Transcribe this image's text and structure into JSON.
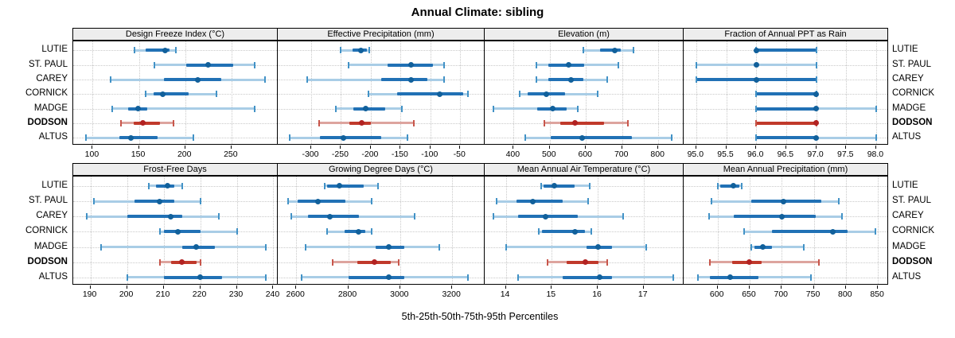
{
  "title": "Annual Climate: sibling",
  "caption": "5th-25th-50th-75th-95th Percentiles",
  "percentile_labels": [
    "5th",
    "25th",
    "50th",
    "75th",
    "95th"
  ],
  "stations": [
    "LUTIE",
    "ST. PAUL",
    "CAREY",
    "CORNICK",
    "MADGE",
    "DODSON",
    "ALTUS"
  ],
  "highlight_station": "DODSON",
  "colors": {
    "series_light": "#a9cde6",
    "series_strong": "#2171b5",
    "series_cap": "#4292c6",
    "series_dot": "#11609b",
    "highlight_light": "#dda49e",
    "highlight_strong": "#c0392b",
    "highlight_cap": "#c8564b",
    "highlight_dot": "#b22222",
    "strip_bg": "#ededed",
    "grid": "#c9c9c9",
    "border": "#000000"
  },
  "chart_data": [
    {
      "type": "percentile-range",
      "row": 1,
      "col": 1,
      "title": "Design Freeze Index (°C)",
      "domain": [
        79,
        300
      ],
      "ticks": [
        100,
        150,
        200,
        250
      ],
      "tick_labels": [
        "100",
        "150",
        "200",
        "250"
      ],
      "series": [
        {
          "name": "LUTIE",
          "q": [
            145,
            157,
            178,
            183,
            190
          ]
        },
        {
          "name": "ST. PAUL",
          "q": [
            167,
            201,
            225,
            252,
            275
          ]
        },
        {
          "name": "CAREY",
          "q": [
            119,
            177,
            214,
            239,
            286
          ]
        },
        {
          "name": "CORNICK",
          "q": [
            157,
            166,
            176,
            204,
            234
          ]
        },
        {
          "name": "MADGE",
          "q": [
            121,
            138,
            149,
            159,
            275
          ]
        },
        {
          "name": "DODSON",
          "q": [
            131,
            144,
            154,
            173,
            187
          ]
        },
        {
          "name": "ALTUS",
          "q": [
            93,
            129,
            141,
            170,
            209
          ]
        }
      ]
    },
    {
      "type": "percentile-range",
      "row": 1,
      "col": 2,
      "title": "Effective Precipitation (mm)",
      "domain": [
        -356,
        -9
      ],
      "ticks": [
        -300,
        -250,
        -200,
        -150,
        -100,
        -50
      ],
      "tick_labels": [
        "-300",
        "-250",
        "-200",
        "-150",
        "-100",
        "-50"
      ],
      "series": [
        {
          "name": "LUTIE",
          "q": [
            -250,
            -230,
            -217,
            -206,
            -202
          ]
        },
        {
          "name": "ST. PAUL",
          "q": [
            -237,
            -172,
            -132,
            -96,
            -77
          ]
        },
        {
          "name": "CAREY",
          "q": [
            -306,
            -183,
            -132,
            -105,
            -77
          ]
        },
        {
          "name": "CORNICK",
          "q": [
            -204,
            -156,
            -85,
            -45,
            -37
          ]
        },
        {
          "name": "MADGE",
          "q": [
            -259,
            -229,
            -208,
            -176,
            -148
          ]
        },
        {
          "name": "DODSON",
          "q": [
            -286,
            -236,
            -215,
            -200,
            -128
          ]
        },
        {
          "name": "ALTUS",
          "q": [
            -336,
            -285,
            -246,
            -183,
            -138
          ]
        }
      ]
    },
    {
      "type": "percentile-range",
      "row": 1,
      "col": 3,
      "title": "Elevation (m)",
      "domain": [
        320,
        870
      ],
      "ticks": [
        400,
        500,
        600,
        700,
        800
      ],
      "tick_labels": [
        "400",
        "500",
        "600",
        "700",
        "800"
      ],
      "series": [
        {
          "name": "LUTIE",
          "q": [
            593,
            638,
            680,
            697,
            732
          ]
        },
        {
          "name": "ST. PAUL",
          "q": [
            462,
            495,
            552,
            594,
            690
          ]
        },
        {
          "name": "CAREY",
          "q": [
            462,
            496,
            558,
            592,
            659
          ]
        },
        {
          "name": "CORNICK",
          "q": [
            417,
            439,
            490,
            543,
            632
          ]
        },
        {
          "name": "MADGE",
          "q": [
            345,
            466,
            508,
            547,
            578
          ]
        },
        {
          "name": "DODSON",
          "q": [
            484,
            528,
            569,
            649,
            715
          ]
        },
        {
          "name": "ALTUS",
          "q": [
            433,
            503,
            590,
            726,
            838
          ]
        }
      ]
    },
    {
      "type": "percentile-range",
      "row": 1,
      "col": 4,
      "title": "Fraction of Annual PPT as Rain",
      "domain": [
        94.79,
        98.2
      ],
      "ticks": [
        95.0,
        95.5,
        96.0,
        96.5,
        97.0,
        97.5,
        98.0
      ],
      "tick_labels": [
        "95.0",
        "95.5",
        "96.0",
        "96.5",
        "97.0",
        "97.5",
        "98.0"
      ],
      "series": [
        {
          "name": "LUTIE",
          "q": [
            96.0,
            96.0,
            96.0,
            97.0,
            97.0
          ]
        },
        {
          "name": "ST. PAUL",
          "q": [
            95.0,
            96.0,
            96.0,
            96.0,
            97.0
          ]
        },
        {
          "name": "CAREY",
          "q": [
            95.0,
            95.0,
            96.0,
            97.0,
            97.0
          ]
        },
        {
          "name": "CORNICK",
          "q": [
            96.0,
            96.0,
            97.0,
            97.0,
            97.0
          ]
        },
        {
          "name": "MADGE",
          "q": [
            96.0,
            96.0,
            97.0,
            97.0,
            98.0
          ]
        },
        {
          "name": "DODSON",
          "q": [
            96.0,
            96.0,
            97.0,
            97.0,
            97.0
          ]
        },
        {
          "name": "ALTUS",
          "q": [
            96.0,
            96.0,
            97.0,
            97.0,
            98.0
          ]
        }
      ]
    },
    {
      "type": "percentile-range",
      "row": 2,
      "col": 1,
      "title": "Frost-Free Days",
      "domain": [
        185.3,
        241.2
      ],
      "ticks": [
        190,
        200,
        210,
        220,
        230,
        240
      ],
      "tick_labels": [
        "190",
        "200",
        "210",
        "220",
        "230",
        "240"
      ],
      "series": [
        {
          "name": "LUTIE",
          "q": [
            206,
            208,
            211,
            213,
            215
          ]
        },
        {
          "name": "ST. PAUL",
          "q": [
            191,
            202,
            209,
            213,
            220
          ]
        },
        {
          "name": "CAREY",
          "q": [
            189,
            200,
            212,
            215,
            225
          ]
        },
        {
          "name": "CORNICK",
          "q": [
            209,
            210,
            214,
            220,
            230
          ]
        },
        {
          "name": "MADGE",
          "q": [
            193,
            215,
            219,
            224,
            238
          ]
        },
        {
          "name": "DODSON",
          "q": [
            209,
            212,
            215,
            219,
            220
          ]
        },
        {
          "name": "ALTUS",
          "q": [
            200,
            210,
            220,
            226,
            238
          ]
        }
      ]
    },
    {
      "type": "percentile-range",
      "row": 2,
      "col": 2,
      "title": "Growing Degree Days (°C)",
      "domain": [
        2529,
        3325
      ],
      "ticks": [
        2600,
        2800,
        3000,
        3200
      ],
      "tick_labels": [
        "2600",
        "2800",
        "3000",
        "3200"
      ],
      "series": [
        {
          "name": "LUTIE",
          "q": [
            2710,
            2720,
            2765,
            2860,
            2915
          ]
        },
        {
          "name": "ST. PAUL",
          "q": [
            2570,
            2605,
            2685,
            2790,
            2890
          ]
        },
        {
          "name": "CAREY",
          "q": [
            2580,
            2645,
            2730,
            2840,
            3055
          ]
        },
        {
          "name": "CORNICK",
          "q": [
            2720,
            2785,
            2840,
            2865,
            2890
          ]
        },
        {
          "name": "MADGE",
          "q": [
            2635,
            2905,
            2955,
            3015,
            3150
          ]
        },
        {
          "name": "DODSON",
          "q": [
            2740,
            2835,
            2900,
            2965,
            2995
          ]
        },
        {
          "name": "ALTUS",
          "q": [
            2620,
            2800,
            2955,
            3015,
            3260
          ]
        }
      ]
    },
    {
      "type": "percentile-range",
      "row": 2,
      "col": 3,
      "title": "Mean Annual Air Temperature (°C)",
      "domain": [
        13.54,
        17.87
      ],
      "ticks": [
        14,
        15,
        16,
        17
      ],
      "tick_labels": [
        "14",
        "15",
        "16",
        "17"
      ],
      "series": [
        {
          "name": "LUTIE",
          "q": [
            14.77,
            14.82,
            15.06,
            15.5,
            15.82
          ]
        },
        {
          "name": "ST. PAUL",
          "q": [
            13.8,
            14.23,
            14.59,
            15.24,
            15.79
          ]
        },
        {
          "name": "CAREY",
          "q": [
            13.73,
            14.26,
            14.87,
            15.56,
            16.56
          ]
        },
        {
          "name": "CORNICK",
          "q": [
            14.72,
            14.78,
            15.5,
            15.73,
            15.86
          ]
        },
        {
          "name": "MADGE",
          "q": [
            14.0,
            15.76,
            16.01,
            16.31,
            17.05
          ]
        },
        {
          "name": "DODSON",
          "q": [
            14.91,
            15.33,
            15.73,
            16.02,
            16.21
          ]
        },
        {
          "name": "ALTUS",
          "q": [
            14.26,
            15.24,
            16.05,
            16.31,
            17.64
          ]
        }
      ]
    },
    {
      "type": "percentile-range",
      "row": 2,
      "col": 4,
      "title": "Mean Annual Precipitation (mm)",
      "domain": [
        547,
        866
      ],
      "ticks": [
        600,
        650,
        700,
        750,
        800,
        850
      ],
      "tick_labels": [
        "600",
        "650",
        "700",
        "750",
        "800",
        "850"
      ],
      "series": [
        {
          "name": "LUTIE",
          "q": [
            600,
            604,
            624,
            634,
            637
          ]
        },
        {
          "name": "ST. PAUL",
          "q": [
            590,
            652,
            703,
            762,
            789
          ]
        },
        {
          "name": "CAREY",
          "q": [
            587,
            625,
            700,
            753,
            794
          ]
        },
        {
          "name": "CORNICK",
          "q": [
            641,
            685,
            780,
            803,
            846
          ]
        },
        {
          "name": "MADGE",
          "q": [
            653,
            657,
            670,
            685,
            735
          ]
        },
        {
          "name": "DODSON",
          "q": [
            588,
            623,
            650,
            669,
            758
          ]
        },
        {
          "name": "ALTUS",
          "q": [
            569,
            588,
            620,
            664,
            746
          ]
        }
      ]
    }
  ]
}
